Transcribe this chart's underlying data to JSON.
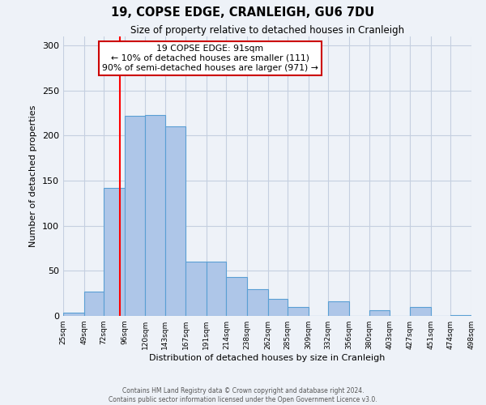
{
  "title": "19, COPSE EDGE, CRANLEIGH, GU6 7DU",
  "subtitle": "Size of property relative to detached houses in Cranleigh",
  "xlabel": "Distribution of detached houses by size in Cranleigh",
  "ylabel": "Number of detached properties",
  "bin_edges": [
    25,
    49,
    72,
    96,
    120,
    143,
    167,
    191,
    214,
    238,
    262,
    285,
    309,
    332,
    356,
    380,
    403,
    427,
    451,
    474,
    498
  ],
  "bar_values": [
    4,
    27,
    142,
    222,
    223,
    210,
    60,
    60,
    43,
    30,
    19,
    10,
    0,
    16,
    0,
    6,
    0,
    10,
    0,
    1
  ],
  "bar_color": "#aec6e8",
  "bar_edge_color": "#5a9fd4",
  "red_line_x": 91,
  "annotation_line1": "19 COPSE EDGE: 91sqm",
  "annotation_line2": "← 10% of detached houses are smaller (111)",
  "annotation_line3": "90% of semi-detached houses are larger (971) →",
  "box_edge_color": "#cc0000",
  "ylim": [
    0,
    310
  ],
  "yticks": [
    0,
    50,
    100,
    150,
    200,
    250,
    300
  ],
  "footer1": "Contains HM Land Registry data © Crown copyright and database right 2024.",
  "footer2": "Contains public sector information licensed under the Open Government Licence v3.0.",
  "bg_color": "#eef2f8"
}
